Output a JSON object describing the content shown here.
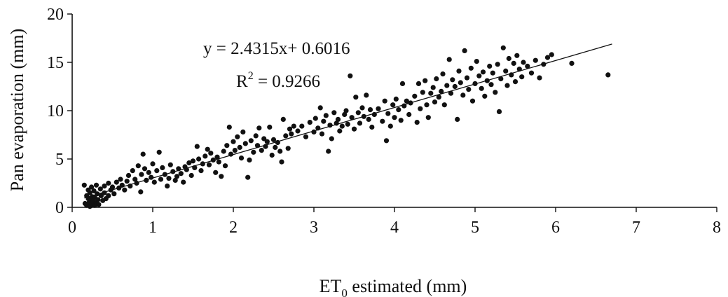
{
  "chart_data": {
    "type": "scatter",
    "title": "",
    "xlabel_main": "ET",
    "xlabel_sub": "0",
    "xlabel_rest": " estimated (mm)",
    "ylabel": "Pan evaporation (mm)",
    "xlim": [
      0,
      8
    ],
    "ylim": [
      0,
      20
    ],
    "xticks": [
      0,
      1,
      2,
      3,
      4,
      5,
      6,
      7,
      8
    ],
    "yticks": [
      0,
      5,
      10,
      15,
      20
    ],
    "grid": false,
    "legend": "none",
    "equation": "y = 2.4315x+ 0.6016",
    "r2_prefix": "R",
    "r2_sup": "2",
    "r2_value": " = 0.9266",
    "trendline": {
      "slope": 2.4315,
      "intercept": 0.6016,
      "x_range": [
        0.15,
        6.7
      ]
    },
    "marker_color": "#111111",
    "points": [
      [
        0.15,
        2.3
      ],
      [
        0.16,
        0.4
      ],
      [
        0.18,
        1.2
      ],
      [
        0.18,
        0.2
      ],
      [
        0.2,
        0.9
      ],
      [
        0.2,
        1.8
      ],
      [
        0.21,
        0.5
      ],
      [
        0.22,
        0.1
      ],
      [
        0.22,
        1.5
      ],
      [
        0.23,
        0.7
      ],
      [
        0.24,
        2.1
      ],
      [
        0.25,
        0.3
      ],
      [
        0.25,
        1.1
      ],
      [
        0.26,
        0.6
      ],
      [
        0.27,
        1.7
      ],
      [
        0.28,
        0.2
      ],
      [
        0.28,
        1.0
      ],
      [
        0.3,
        0.5
      ],
      [
        0.3,
        2.3
      ],
      [
        0.31,
        1.4
      ],
      [
        0.32,
        0.8
      ],
      [
        0.33,
        0.3
      ],
      [
        0.35,
        1.9
      ],
      [
        0.36,
        1.2
      ],
      [
        0.38,
        0.7
      ],
      [
        0.4,
        2.2
      ],
      [
        0.4,
        1.5
      ],
      [
        0.42,
        0.9
      ],
      [
        0.45,
        2.5
      ],
      [
        0.45,
        1.2
      ],
      [
        0.48,
        1.8
      ],
      [
        0.5,
        2.1
      ],
      [
        0.52,
        1.4
      ],
      [
        0.55,
        2.6
      ],
      [
        0.58,
        2.0
      ],
      [
        0.6,
        2.9
      ],
      [
        0.62,
        2.3
      ],
      [
        0.65,
        1.8
      ],
      [
        0.68,
        2.7
      ],
      [
        0.7,
        3.3
      ],
      [
        0.72,
        2.2
      ],
      [
        0.75,
        3.8
      ],
      [
        0.78,
        2.9
      ],
      [
        0.8,
        2.5
      ],
      [
        0.82,
        4.3
      ],
      [
        0.85,
        1.6
      ],
      [
        0.86,
        3.4
      ],
      [
        0.88,
        5.5
      ],
      [
        0.9,
        4.0
      ],
      [
        0.92,
        2.8
      ],
      [
        0.95,
        3.6
      ],
      [
        0.98,
        3.1
      ],
      [
        1.0,
        4.5
      ],
      [
        1.02,
        2.6
      ],
      [
        1.05,
        3.8
      ],
      [
        1.08,
        5.7
      ],
      [
        1.1,
        2.9
      ],
      [
        1.12,
        4.1
      ],
      [
        1.15,
        3.4
      ],
      [
        1.18,
        2.2
      ],
      [
        1.2,
        3.0
      ],
      [
        1.22,
        4.4
      ],
      [
        1.25,
        3.7
      ],
      [
        1.28,
        2.8
      ],
      [
        1.3,
        3.2
      ],
      [
        1.32,
        4.0
      ],
      [
        1.35,
        3.5
      ],
      [
        1.38,
        2.6
      ],
      [
        1.4,
        4.2
      ],
      [
        1.42,
        3.9
      ],
      [
        1.45,
        4.6
      ],
      [
        1.48,
        3.3
      ],
      [
        1.5,
        4.8
      ],
      [
        1.52,
        4.1
      ],
      [
        1.55,
        6.3
      ],
      [
        1.57,
        5.0
      ],
      [
        1.6,
        3.8
      ],
      [
        1.62,
        4.5
      ],
      [
        1.65,
        5.3
      ],
      [
        1.68,
        6.0
      ],
      [
        1.7,
        4.4
      ],
      [
        1.72,
        5.6
      ],
      [
        1.75,
        4.9
      ],
      [
        1.78,
        3.6
      ],
      [
        1.8,
        5.2
      ],
      [
        1.82,
        4.7
      ],
      [
        1.85,
        3.2
      ],
      [
        1.88,
        5.8
      ],
      [
        1.9,
        4.3
      ],
      [
        1.92,
        6.4
      ],
      [
        1.95,
        8.3
      ],
      [
        1.97,
        5.5
      ],
      [
        2.0,
        6.8
      ],
      [
        2.02,
        5.9
      ],
      [
        2.05,
        7.3
      ],
      [
        2.08,
        6.2
      ],
      [
        2.1,
        5.1
      ],
      [
        2.12,
        7.8
      ],
      [
        2.15,
        6.6
      ],
      [
        2.18,
        3.1
      ],
      [
        2.2,
        4.9
      ],
      [
        2.22,
        6.9
      ],
      [
        2.25,
        5.7
      ],
      [
        2.28,
        7.4
      ],
      [
        2.3,
        6.4
      ],
      [
        2.32,
        8.2
      ],
      [
        2.35,
        5.9
      ],
      [
        2.38,
        7.1
      ],
      [
        2.4,
        6.3
      ],
      [
        2.42,
        6.8
      ],
      [
        2.45,
        8.3
      ],
      [
        2.48,
        5.4
      ],
      [
        2.5,
        7.0
      ],
      [
        2.52,
        6.2
      ],
      [
        2.55,
        6.7
      ],
      [
        2.58,
        5.8
      ],
      [
        2.6,
        4.7
      ],
      [
        2.62,
        9.1
      ],
      [
        2.65,
        7.4
      ],
      [
        2.68,
        6.1
      ],
      [
        2.7,
        8.1
      ],
      [
        2.72,
        7.6
      ],
      [
        2.75,
        8.4
      ],
      [
        2.8,
        7.9
      ],
      [
        2.85,
        8.4
      ],
      [
        2.9,
        7.3
      ],
      [
        2.95,
        8.8
      ],
      [
        3.0,
        7.8
      ],
      [
        3.02,
        9.2
      ],
      [
        3.05,
        8.2
      ],
      [
        3.08,
        10.3
      ],
      [
        3.1,
        7.6
      ],
      [
        3.12,
        8.9
      ],
      [
        3.15,
        9.5
      ],
      [
        3.18,
        5.8
      ],
      [
        3.2,
        8.5
      ],
      [
        3.22,
        7.1
      ],
      [
        3.25,
        9.8
      ],
      [
        3.28,
        8.7
      ],
      [
        3.3,
        9.1
      ],
      [
        3.32,
        7.9
      ],
      [
        3.35,
        8.4
      ],
      [
        3.38,
        9.6
      ],
      [
        3.4,
        10.0
      ],
      [
        3.42,
        8.6
      ],
      [
        3.45,
        13.6
      ],
      [
        3.47,
        9.3
      ],
      [
        3.5,
        8.1
      ],
      [
        3.52,
        11.4
      ],
      [
        3.55,
        9.8
      ],
      [
        3.57,
        8.7
      ],
      [
        3.6,
        10.3
      ],
      [
        3.62,
        9.4
      ],
      [
        3.65,
        11.6
      ],
      [
        3.68,
        9.1
      ],
      [
        3.7,
        10.1
      ],
      [
        3.72,
        8.3
      ],
      [
        3.75,
        9.6
      ],
      [
        3.8,
        10.2
      ],
      [
        3.85,
        8.9
      ],
      [
        3.88,
        11.0
      ],
      [
        3.9,
        6.9
      ],
      [
        3.92,
        9.7
      ],
      [
        3.95,
        8.4
      ],
      [
        3.98,
        10.6
      ],
      [
        4.0,
        9.3
      ],
      [
        4.02,
        11.2
      ],
      [
        4.05,
        10.1
      ],
      [
        4.08,
        9.0
      ],
      [
        4.1,
        12.8
      ],
      [
        4.12,
        10.5
      ],
      [
        4.15,
        11.0
      ],
      [
        4.18,
        9.6
      ],
      [
        4.2,
        10.8
      ],
      [
        4.25,
        11.5
      ],
      [
        4.28,
        8.8
      ],
      [
        4.3,
        12.8
      ],
      [
        4.32,
        10.2
      ],
      [
        4.35,
        11.9
      ],
      [
        4.38,
        13.1
      ],
      [
        4.4,
        10.6
      ],
      [
        4.42,
        9.3
      ],
      [
        4.45,
        11.8
      ],
      [
        4.48,
        12.4
      ],
      [
        4.5,
        10.9
      ],
      [
        4.52,
        13.3
      ],
      [
        4.55,
        11.4
      ],
      [
        4.58,
        12.0
      ],
      [
        4.6,
        13.8
      ],
      [
        4.62,
        10.6
      ],
      [
        4.65,
        12.6
      ],
      [
        4.68,
        15.3
      ],
      [
        4.7,
        11.8
      ],
      [
        4.72,
        13.2
      ],
      [
        4.75,
        12.5
      ],
      [
        4.78,
        9.1
      ],
      [
        4.8,
        14.1
      ],
      [
        4.82,
        12.9
      ],
      [
        4.85,
        11.6
      ],
      [
        4.87,
        16.2
      ],
      [
        4.9,
        13.4
      ],
      [
        4.92,
        12.2
      ],
      [
        4.95,
        14.4
      ],
      [
        4.97,
        11.0
      ],
      [
        5.0,
        12.8
      ],
      [
        5.02,
        15.1
      ],
      [
        5.05,
        13.6
      ],
      [
        5.08,
        12.3
      ],
      [
        5.1,
        14.0
      ],
      [
        5.12,
        11.5
      ],
      [
        5.15,
        13.1
      ],
      [
        5.18,
        14.6
      ],
      [
        5.2,
        12.7
      ],
      [
        5.22,
        13.9
      ],
      [
        5.25,
        11.9
      ],
      [
        5.28,
        14.8
      ],
      [
        5.3,
        9.9
      ],
      [
        5.32,
        13.3
      ],
      [
        5.35,
        16.5
      ],
      [
        5.38,
        14.1
      ],
      [
        5.4,
        12.6
      ],
      [
        5.42,
        15.4
      ],
      [
        5.45,
        13.7
      ],
      [
        5.48,
        14.9
      ],
      [
        5.5,
        13.0
      ],
      [
        5.52,
        15.7
      ],
      [
        5.55,
        14.3
      ],
      [
        5.58,
        13.5
      ],
      [
        5.6,
        15.0
      ],
      [
        5.65,
        14.6
      ],
      [
        5.7,
        13.9
      ],
      [
        5.75,
        15.2
      ],
      [
        5.8,
        13.4
      ],
      [
        5.85,
        14.8
      ],
      [
        5.9,
        15.5
      ],
      [
        5.95,
        15.8
      ],
      [
        6.2,
        14.9
      ],
      [
        6.65,
        13.7
      ]
    ]
  }
}
